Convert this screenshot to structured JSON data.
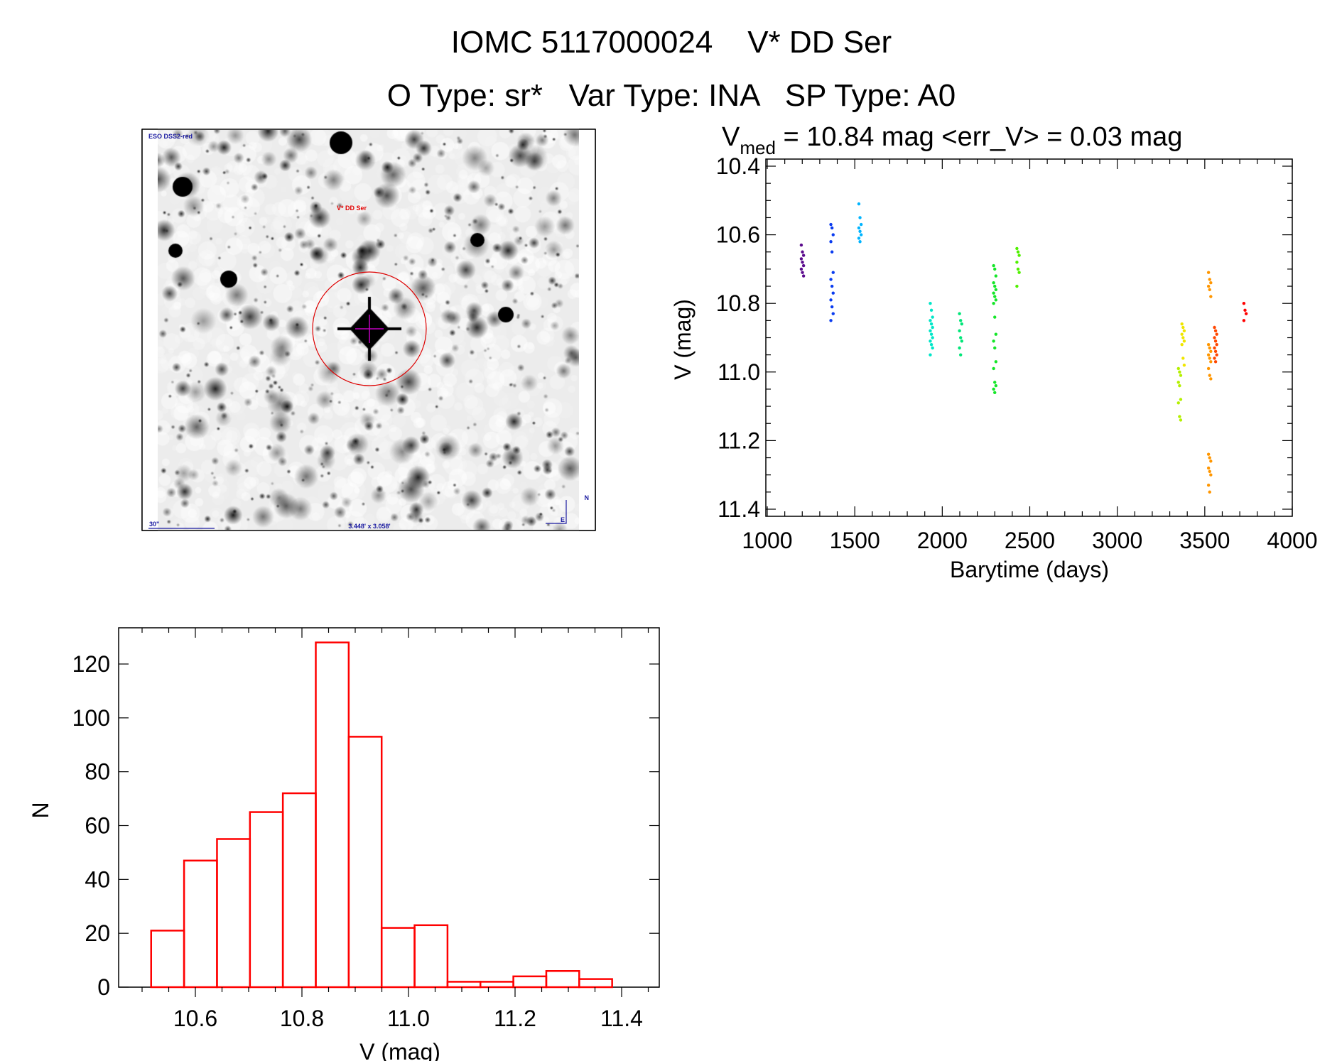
{
  "header": {
    "title": "IOMC 5117000024    V* DD Ser",
    "subtitle": "O Type: sr*   Var Type: INA   SP Type: A0"
  },
  "finder_image": {
    "survey_label": "ESO DSS2-red",
    "target_label": "V* DD Ser",
    "scale_label": "30\"",
    "fov_label": "3.448' x 3.058'",
    "north_label": "N",
    "east_label": "E"
  },
  "chart_data": [
    {
      "type": "scatter",
      "title_main": "V",
      "title_sub": "med",
      "title_rest": " = 10.84 mag <err_V> = 0.03 mag",
      "xlabel": "Barytime (days)",
      "ylabel": "V (mag)",
      "xlim": [
        1000,
        4000
      ],
      "ylim": [
        10.4,
        11.4
      ],
      "y_inverted": true,
      "xticks": [
        "1000",
        "1500",
        "2000",
        "2500",
        "3000",
        "3500",
        "4000"
      ],
      "yticks": [
        "10.4",
        "10.6",
        "10.8",
        "11.0",
        "11.2",
        "11.4"
      ],
      "series": [
        {
          "t": 1201,
          "color": "#5a0a8c",
          "v": [
            10.63,
            10.65,
            10.66,
            10.67,
            10.68,
            10.69,
            10.7,
            10.71,
            10.72
          ]
        },
        {
          "t": 1370,
          "color": "#0a3cf0",
          "v": [
            10.57,
            10.58,
            10.6,
            10.62,
            10.65,
            10.71,
            10.73,
            10.75,
            10.77,
            10.79,
            10.81,
            10.83,
            10.85
          ]
        },
        {
          "t": 1530,
          "color": "#00b4ff",
          "v": [
            10.51,
            10.55,
            10.57,
            10.58,
            10.59,
            10.6,
            10.61,
            10.62
          ]
        },
        {
          "t": 1938,
          "color": "#00e6c8",
          "v": [
            10.8,
            10.82,
            10.84,
            10.85,
            10.86,
            10.87,
            10.88,
            10.89,
            10.9,
            10.91,
            10.92,
            10.93,
            10.95
          ]
        },
        {
          "t": 2105,
          "color": "#00e678",
          "v": [
            10.83,
            10.85,
            10.86,
            10.88,
            10.9,
            10.91,
            10.93,
            10.95
          ]
        },
        {
          "t": 2300,
          "color": "#14e628",
          "v": [
            10.69,
            10.7,
            10.72,
            10.74,
            10.75,
            10.76,
            10.77,
            10.78,
            10.79,
            10.8,
            10.84,
            10.89,
            10.91,
            10.93,
            10.97,
            10.99,
            11.03,
            11.04,
            11.05,
            11.06
          ]
        },
        {
          "t": 2433,
          "color": "#50f000",
          "v": [
            10.64,
            10.65,
            10.66,
            10.68,
            10.7,
            10.71,
            10.75
          ]
        },
        {
          "t": 3356,
          "color": "#b4f000",
          "v": [
            10.99,
            11.0,
            11.01,
            11.03,
            11.04,
            11.08,
            11.09,
            11.13,
            11.14
          ]
        },
        {
          "t": 3376,
          "color": "#f0e600",
          "v": [
            10.86,
            10.87,
            10.88,
            10.89,
            10.9,
            10.91,
            10.92,
            10.96,
            10.98
          ]
        },
        {
          "t": 3528,
          "color": "#ff9600",
          "v": [
            10.71,
            10.73,
            10.74,
            10.75,
            10.76,
            10.78,
            10.92,
            10.93,
            10.94,
            10.95,
            10.96,
            10.97,
            10.99,
            11.01,
            11.02,
            11.24,
            11.25,
            11.26,
            11.28,
            11.29,
            11.3,
            11.33,
            11.35
          ]
        },
        {
          "t": 3562,
          "color": "#ff4600",
          "v": [
            10.87,
            10.88,
            10.89,
            10.9,
            10.91,
            10.92,
            10.93,
            10.94,
            10.95,
            10.96,
            10.97
          ]
        },
        {
          "t": 3730,
          "color": "#ff0000",
          "v": [
            10.8,
            10.82,
            10.83,
            10.85
          ]
        }
      ]
    },
    {
      "type": "bar",
      "xlabel": "V (mag)",
      "ylabel": "N",
      "xlim": [
        10.45,
        11.5
      ],
      "ylim": [
        0,
        130
      ],
      "xticks": [
        "10.6",
        "10.8",
        "11.0",
        "11.2",
        "11.4"
      ],
      "yticks": [
        "0",
        "20",
        "40",
        "60",
        "80",
        "100",
        "120"
      ],
      "bin_start": 10.517,
      "bin_width": 0.0618,
      "values": [
        21,
        47,
        55,
        65,
        72,
        128,
        93,
        22,
        23,
        2,
        2,
        4,
        6,
        3
      ],
      "bar_color": "#ff0000"
    }
  ]
}
